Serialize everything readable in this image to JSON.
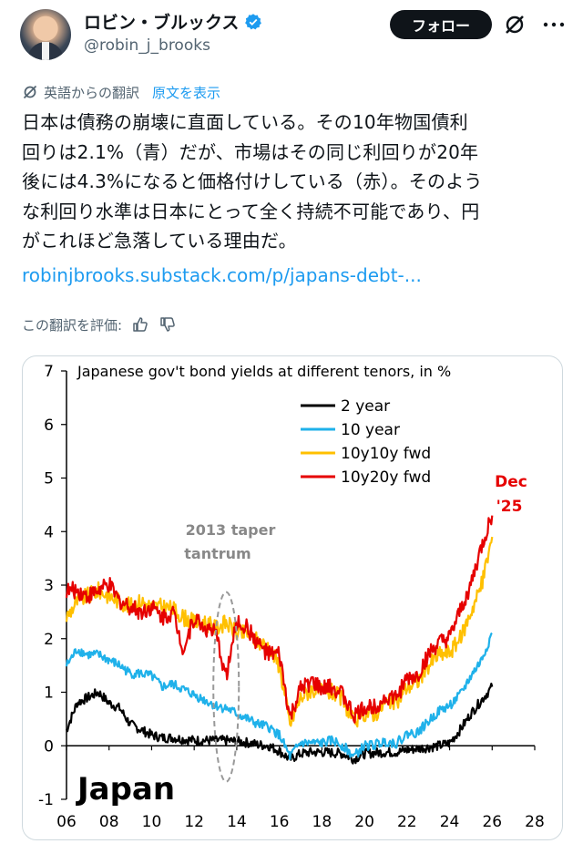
{
  "author": {
    "name": "ロビン・ブルックス",
    "handle": "@robin_j_brooks",
    "verified_color": "#1d9bf0"
  },
  "actions": {
    "follow_label": "フォロー"
  },
  "translation": {
    "label": "英語からの翻訳",
    "show_original": "原文を表示"
  },
  "post": {
    "lines": [
      "日本は債務の崩壊に直面している。その10年物国債利",
      "回りは2.1%（青）だが、市場はその同じ利回りが20年",
      "後には4.3%になると価格付けしている（赤）。そのよう",
      "な利回り水準は日本にとって全く持続不可能であり、円",
      "がこれほど急落している理由だ。"
    ],
    "link": "robinjbrooks.substack.com/p/japans-debt-..."
  },
  "rating": {
    "label": "この翻訳を評価:"
  },
  "chart_data": {
    "type": "line",
    "title": "Japanese gov't bond yields at different tenors, in %",
    "country_label": "Japan",
    "xlabel": "",
    "ylabel": "",
    "xlim": [
      2006,
      2028
    ],
    "ylim": [
      -1,
      7
    ],
    "x_ticks": [
      "06",
      "08",
      "10",
      "12",
      "14",
      "16",
      "18",
      "20",
      "22",
      "24",
      "26",
      "28"
    ],
    "y_ticks": [
      "7",
      "6",
      "5",
      "4",
      "3",
      "2",
      "1",
      "0",
      "-1"
    ],
    "legend_position": "top-right",
    "annotations": [
      {
        "text_lines": [
          "2013 taper",
          "tantrum"
        ],
        "color": "#888888"
      },
      {
        "text_lines": [
          "Dec",
          "'25"
        ],
        "color": "#e60000"
      }
    ],
    "series": [
      {
        "name": "2 year",
        "color": "#000000",
        "x": [
          2006.0,
          2006.5,
          2007.0,
          2007.5,
          2008.0,
          2008.5,
          2009.0,
          2009.5,
          2010.0,
          2010.5,
          2011.0,
          2011.5,
          2012.0,
          2012.5,
          2013.0,
          2013.5,
          2014.0,
          2014.5,
          2015.0,
          2015.5,
          2016.0,
          2016.5,
          2017.0,
          2017.5,
          2018.0,
          2018.5,
          2019.0,
          2019.5,
          2020.0,
          2020.5,
          2021.0,
          2021.5,
          2022.0,
          2022.5,
          2023.0,
          2023.5,
          2024.0,
          2024.5,
          2025.0,
          2025.5,
          2026.0
        ],
        "y": [
          0.3,
          0.8,
          0.9,
          1.0,
          0.8,
          0.7,
          0.4,
          0.3,
          0.2,
          0.15,
          0.15,
          0.12,
          0.1,
          0.1,
          0.1,
          0.1,
          0.08,
          0.06,
          0.02,
          0.0,
          -0.1,
          -0.25,
          -0.15,
          -0.12,
          -0.12,
          -0.13,
          -0.15,
          -0.25,
          -0.15,
          -0.13,
          -0.12,
          -0.12,
          -0.08,
          -0.05,
          -0.03,
          0.0,
          0.05,
          0.3,
          0.6,
          0.85,
          1.1
        ]
      },
      {
        "name": "10 year",
        "color": "#1fb1ea",
        "x": [
          2006.0,
          2006.5,
          2007.0,
          2007.5,
          2008.0,
          2008.5,
          2009.0,
          2009.5,
          2010.0,
          2010.5,
          2011.0,
          2011.5,
          2012.0,
          2012.5,
          2013.0,
          2013.5,
          2014.0,
          2014.5,
          2015.0,
          2015.5,
          2016.0,
          2016.5,
          2017.0,
          2017.5,
          2018.0,
          2018.5,
          2019.0,
          2019.5,
          2020.0,
          2020.5,
          2021.0,
          2021.5,
          2022.0,
          2022.5,
          2023.0,
          2023.5,
          2024.0,
          2024.5,
          2025.0,
          2025.5,
          2026.0
        ],
        "y": [
          1.5,
          1.8,
          1.7,
          1.7,
          1.6,
          1.5,
          1.35,
          1.35,
          1.3,
          1.1,
          1.15,
          1.05,
          0.95,
          0.85,
          0.75,
          0.7,
          0.6,
          0.5,
          0.4,
          0.35,
          0.2,
          -0.2,
          0.05,
          0.05,
          0.05,
          0.1,
          0.0,
          -0.2,
          0.0,
          0.02,
          0.08,
          0.05,
          0.22,
          0.25,
          0.45,
          0.65,
          0.75,
          0.95,
          1.3,
          1.6,
          2.1
        ]
      },
      {
        "name": "10y10y fwd",
        "color": "#ffc000",
        "x": [
          2006.0,
          2006.5,
          2007.0,
          2007.5,
          2008.0,
          2008.5,
          2009.0,
          2009.5,
          2010.0,
          2010.5,
          2011.0,
          2011.5,
          2012.0,
          2012.5,
          2013.0,
          2013.5,
          2014.0,
          2014.5,
          2015.0,
          2015.5,
          2016.0,
          2016.5,
          2017.0,
          2017.5,
          2018.0,
          2018.5,
          2019.0,
          2019.5,
          2020.0,
          2020.5,
          2021.0,
          2021.5,
          2022.0,
          2022.5,
          2023.0,
          2023.5,
          2024.0,
          2024.5,
          2025.0,
          2025.5,
          2026.0
        ],
        "y": [
          2.4,
          2.7,
          2.8,
          2.9,
          2.8,
          2.7,
          2.6,
          2.7,
          2.6,
          2.6,
          2.55,
          2.4,
          2.3,
          2.3,
          2.2,
          2.3,
          2.1,
          2.1,
          1.95,
          1.85,
          1.5,
          0.4,
          0.9,
          1.05,
          1.0,
          1.0,
          0.85,
          0.45,
          0.6,
          0.6,
          0.8,
          0.8,
          1.1,
          1.2,
          1.5,
          1.7,
          1.75,
          2.0,
          2.5,
          3.0,
          3.9
        ]
      },
      {
        "name": "10y20y fwd",
        "color": "#e60000",
        "x": [
          2006.0,
          2006.5,
          2007.0,
          2007.5,
          2008.0,
          2008.5,
          2009.0,
          2009.5,
          2010.0,
          2010.5,
          2011.0,
          2011.5,
          2012.0,
          2012.5,
          2013.0,
          2013.5,
          2014.0,
          2014.5,
          2015.0,
          2015.5,
          2016.0,
          2016.5,
          2017.0,
          2017.5,
          2018.0,
          2018.5,
          2019.0,
          2019.5,
          2020.0,
          2020.5,
          2021.0,
          2021.5,
          2022.0,
          2022.5,
          2023.0,
          2023.5,
          2024.0,
          2024.5,
          2025.0,
          2025.5,
          2026.0
        ],
        "y": [
          2.9,
          2.9,
          2.8,
          2.9,
          3.0,
          2.7,
          2.6,
          2.5,
          2.6,
          2.4,
          2.5,
          1.8,
          2.4,
          2.2,
          2.1,
          1.3,
          2.3,
          2.2,
          1.9,
          1.7,
          1.7,
          0.5,
          1.05,
          1.2,
          1.05,
          1.1,
          0.95,
          0.55,
          0.7,
          0.75,
          0.9,
          0.9,
          1.25,
          1.3,
          1.7,
          1.9,
          2.0,
          2.5,
          3.0,
          3.7,
          4.3
        ]
      }
    ]
  }
}
